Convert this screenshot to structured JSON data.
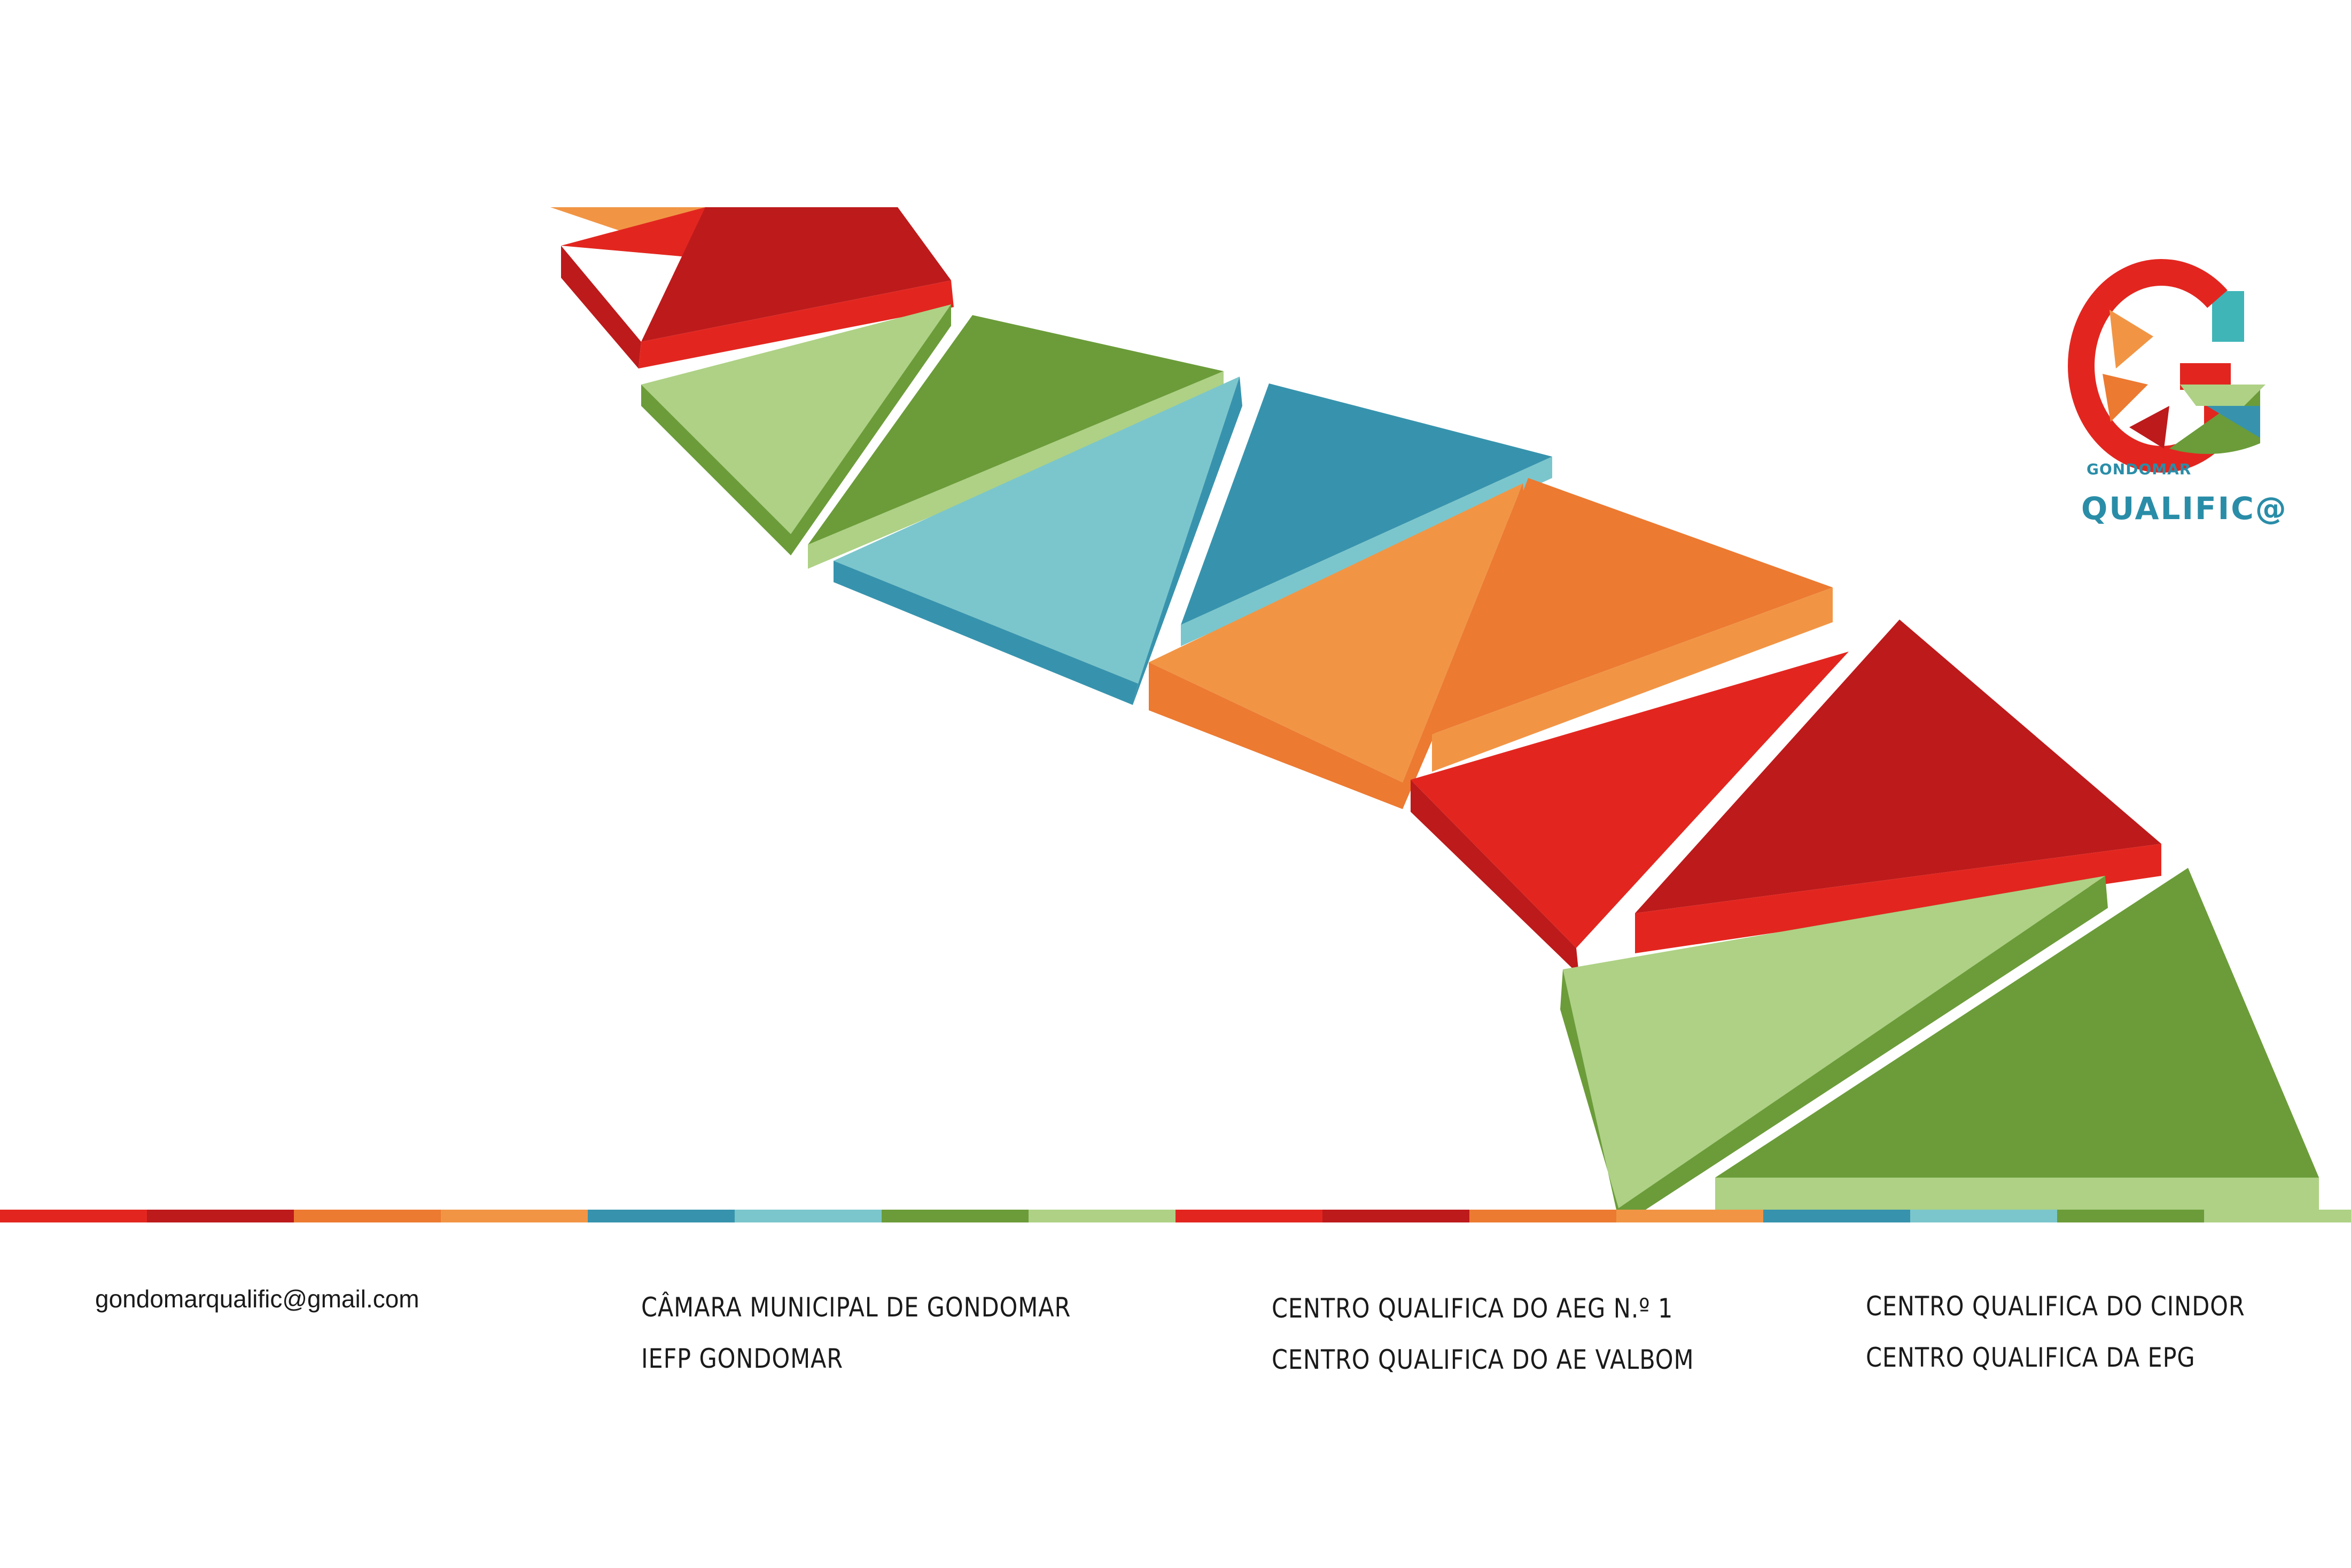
{
  "brand": {
    "small_label": "GONDOMAR",
    "name": "QUALIFIC@",
    "logo_letter": "G",
    "accent": "#2a8da8"
  },
  "contact": {
    "email": "gondomarqualific@gmail.com"
  },
  "partners": {
    "column1": [
      "CÂMARA MUNICIPAL DE GONDOMAR",
      "IEFP GONDOMAR"
    ],
    "column2": [
      "CENTRO QUALIFICA DO AEG N.º 1",
      "CENTRO QUALIFICA DO AE VALBOM"
    ],
    "column3": [
      "CENTRO QUALIFICA DO CINDOR",
      "CENTRO QUALIFICA DA EPG"
    ]
  },
  "palette": {
    "red": "#e2261f",
    "dark_red": "#bd1a1b",
    "orange": "#f19545",
    "dark_orange": "#ec7a31",
    "blue": "#3793ad",
    "light_blue": "#7bc6cc",
    "green": "#6b9c39",
    "light_green": "#aed185"
  }
}
